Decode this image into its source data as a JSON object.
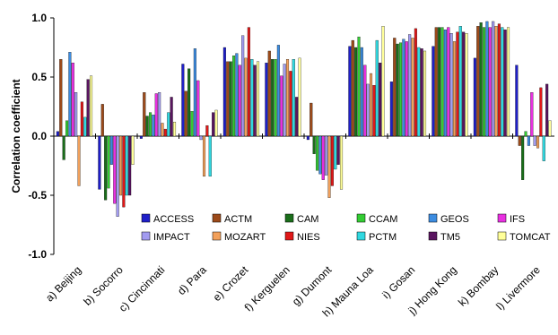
{
  "chart_data": {
    "type": "bar",
    "ylabel": "Correlation coefficient",
    "ylim": [
      -1.0,
      1.0
    ],
    "yticks": [
      "1.0",
      "0.5",
      "0.0",
      "-0.5",
      "-1.0"
    ],
    "ytick_values": [
      1.0,
      0.5,
      0.0,
      -0.5,
      -1.0
    ],
    "grid": false,
    "legend_position": "inside-bottom",
    "categories": [
      "a) Beijing",
      "b) Socorro",
      "c) Cincinnati",
      "d) Para",
      "e) Crozet",
      "f) Kerguelen",
      "g) Dumont",
      "h) Mauna Loa",
      "i) Gosan",
      "j) Hong Kong",
      "k) Bombay",
      "l) Livermore"
    ],
    "series": [
      {
        "name": "ACCESS",
        "color": "#1f1fc8",
        "values": [
          0.04,
          -0.45,
          -0.02,
          0.61,
          0.75,
          0.62,
          -0.03,
          0.76,
          0.46,
          0.76,
          0.66,
          0.6
        ]
      },
      {
        "name": "ACTM",
        "color": "#9c4a1a",
        "values": [
          0.65,
          0.27,
          0.37,
          0.38,
          0.63,
          0.72,
          0.28,
          0.81,
          0.83,
          0.92,
          0.93,
          -0.08
        ]
      },
      {
        "name": "CAM",
        "color": "#1a6e1a",
        "values": [
          -0.2,
          -0.54,
          0.17,
          0.57,
          0.63,
          0.65,
          -0.15,
          0.75,
          0.78,
          0.92,
          0.96,
          -0.37
        ]
      },
      {
        "name": "CCAM",
        "color": "#33cc33",
        "values": [
          0.13,
          -0.44,
          0.2,
          0.21,
          0.68,
          0.65,
          -0.29,
          0.84,
          0.79,
          0.92,
          0.92,
          0.04
        ]
      },
      {
        "name": "GEOS",
        "color": "#3c8ce0",
        "values": [
          0.71,
          -0.24,
          0.18,
          0.74,
          0.7,
          0.77,
          -0.32,
          0.75,
          0.82,
          0.9,
          0.97,
          -0.08
        ]
      },
      {
        "name": "IFS",
        "color": "#e830e0",
        "values": [
          0.62,
          -0.57,
          0.36,
          0.47,
          0.6,
          0.51,
          -0.37,
          0.6,
          0.8,
          0.92,
          0.92,
          0.37
        ]
      },
      {
        "name": "IMPACT",
        "color": "#a29bf0",
        "values": [
          0.37,
          -0.68,
          0.37,
          -0.03,
          0.85,
          0.61,
          -0.33,
          0.44,
          0.86,
          0.87,
          0.97,
          -0.08
        ]
      },
      {
        "name": "MOZART",
        "color": "#f2a05a",
        "values": [
          -0.42,
          -0.5,
          0.11,
          -0.34,
          0.66,
          0.65,
          -0.52,
          0.53,
          0.83,
          0.8,
          0.93,
          -0.1
        ]
      },
      {
        "name": "NIES",
        "color": "#e01818",
        "values": [
          0.29,
          -0.6,
          0.06,
          0.09,
          0.92,
          0.55,
          -0.42,
          0.43,
          0.91,
          0.88,
          0.95,
          0.41
        ]
      },
      {
        "name": "PCTM",
        "color": "#30d8e0",
        "values": [
          0.16,
          -0.5,
          0.2,
          -0.34,
          0.65,
          0.65,
          -0.28,
          0.81,
          0.75,
          0.93,
          0.92,
          -0.21
        ]
      },
      {
        "name": "TM5",
        "color": "#5a1560",
        "values": [
          0.48,
          -0.5,
          0.33,
          0.2,
          0.6,
          0.33,
          -0.24,
          0.62,
          0.74,
          0.88,
          0.9,
          0.44
        ]
      },
      {
        "name": "TOMCAT",
        "color": "#ffff99",
        "values": [
          0.51,
          -0.24,
          0.12,
          0.22,
          0.63,
          0.66,
          -0.45,
          0.93,
          0.72,
          0.87,
          0.92,
          0.13
        ]
      }
    ]
  }
}
